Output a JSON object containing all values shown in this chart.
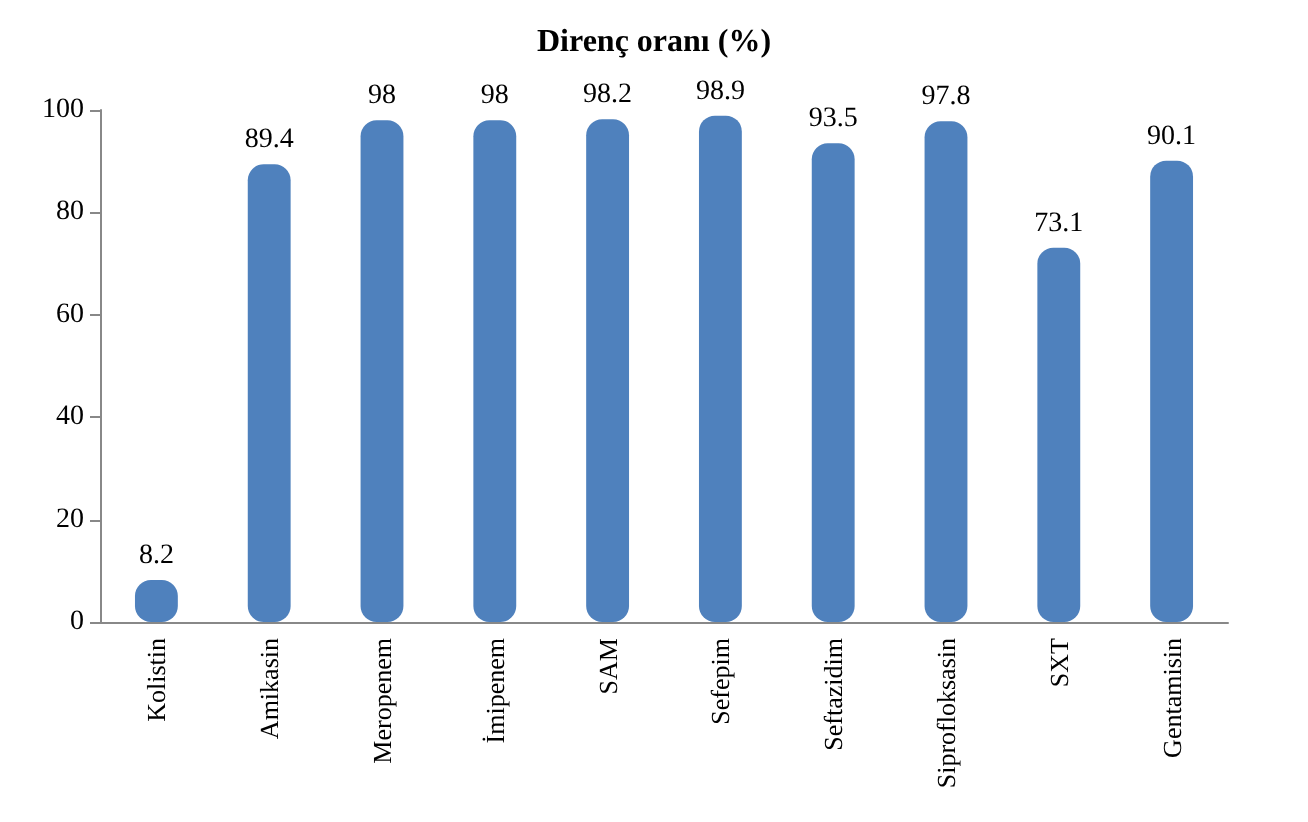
{
  "chart_data": {
    "type": "bar",
    "title": "Direnç oranı (%)",
    "categories": [
      "Kolistin",
      "Amikasin",
      "Meropenem",
      "İmipenem",
      "SAM",
      "Sefepim",
      "Seftazidim",
      "Siprofloksasin",
      "SXT",
      "Gentamisin"
    ],
    "values": [
      8.2,
      89.4,
      98,
      98,
      98.2,
      98.9,
      93.5,
      97.8,
      73.1,
      90.1
    ],
    "color": "#4f81bd",
    "ylim": [
      0,
      100
    ],
    "yticks": [
      0,
      20,
      40,
      60,
      80,
      100
    ],
    "grid": false,
    "data_labels": true
  }
}
